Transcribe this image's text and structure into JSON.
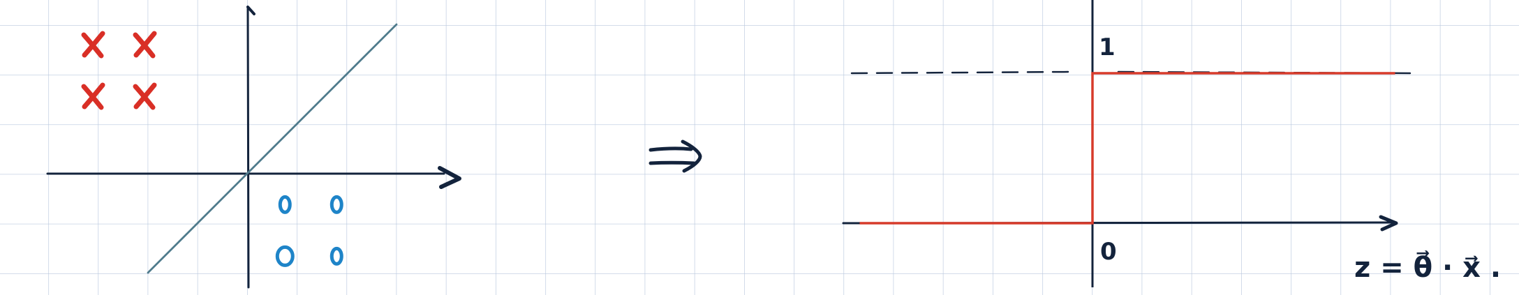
{
  "colors": {
    "background": "#ffffff",
    "grid": "#b9c8de",
    "ink": "#13233c",
    "separator_line": "#4f7b8c",
    "class_x": "#d92f26",
    "class_o": "#1e84c8",
    "step_function": "#d73b2b"
  },
  "left_plot": {
    "class_x_marker": "x",
    "class_o_marker": "o",
    "x_points": [
      {
        "x": -3,
        "y": 3
      },
      {
        "x": -2,
        "y": 3
      },
      {
        "x": -3,
        "y": 2
      },
      {
        "x": -2,
        "y": 2
      }
    ],
    "o_points": [
      {
        "x": 1,
        "y": -1
      },
      {
        "x": 2,
        "y": -1
      },
      {
        "x": 1,
        "y": -2
      },
      {
        "x": 2,
        "y": -2
      }
    ],
    "separator": {
      "from": [
        -2,
        -2
      ],
      "to": [
        3,
        3
      ]
    }
  },
  "implies_symbol": "⇒",
  "right_plot": {
    "y_tick_label": "1",
    "origin_label": "0",
    "axis_label": "z = θ⃗ · x⃗ ."
  },
  "chart_data": {
    "type": "line",
    "title": "",
    "xlabel": "z = θ⃗ · x⃗ .",
    "ylabel": "",
    "series": [
      {
        "x": [
          -5,
          0,
          0,
          6.5
        ],
        "values": [
          0,
          0,
          1,
          1
        ]
      }
    ],
    "y_ticks": [
      0,
      1
    ],
    "reference_line": {
      "y": 1,
      "style": "dashed"
    },
    "grid": true
  }
}
